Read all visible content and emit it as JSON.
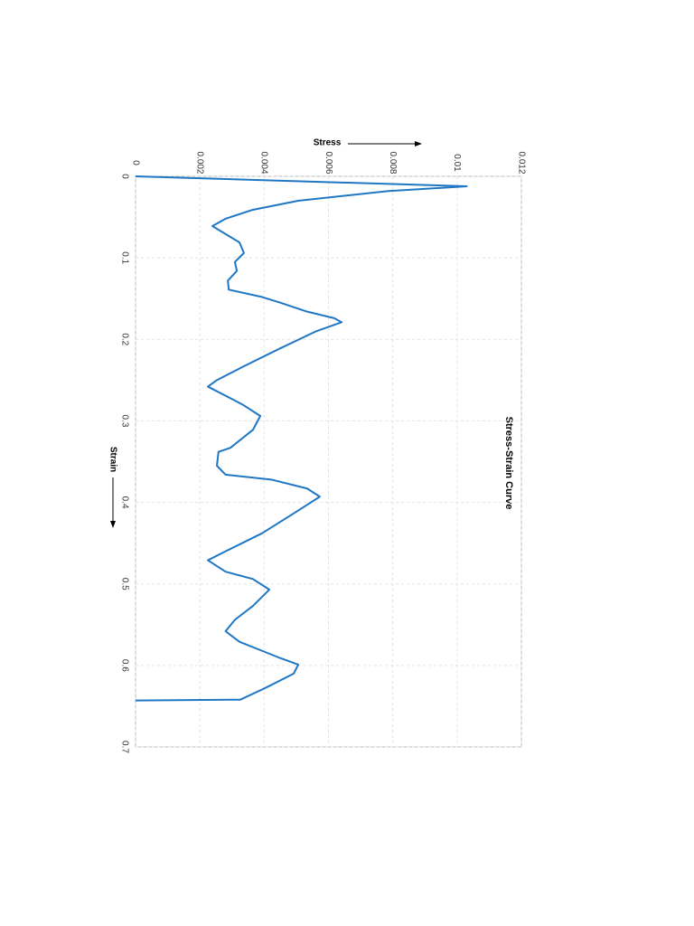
{
  "chart_data": {
    "type": "line",
    "title": "Stress-Strain Curve",
    "x_label": "Strain",
    "y_label": "Stress",
    "x": [
      0,
      0.0122,
      0.018,
      0.03,
      0.041,
      0.052,
      0.061,
      0.081,
      0.094,
      0.105,
      0.116,
      0.128,
      0.139,
      0.148,
      0.155,
      0.166,
      0.174,
      0.179,
      0.19,
      0.211,
      0.233,
      0.25,
      0.258,
      0.274,
      0.281,
      0.294,
      0.311,
      0.333,
      0.338,
      0.355,
      0.366,
      0.372,
      0.383,
      0.393,
      0.41,
      0.438,
      0.46,
      0.471,
      0.485,
      0.494,
      0.507,
      0.527,
      0.544,
      0.558,
      0.571,
      0.582,
      0.591,
      0.599,
      0.61,
      0.627,
      0.642,
      0.643
    ],
    "series": [
      {
        "name": "Stress",
        "color": "#1f77c4",
        "values": [
          0,
          0.0103,
          0.00787,
          0.00506,
          0.00365,
          0.0028,
          0.00239,
          0.00323,
          0.00337,
          0.00309,
          0.00315,
          0.00287,
          0.0029,
          0.00393,
          0.0045,
          0.00534,
          0.00618,
          0.00641,
          0.00562,
          0.0045,
          0.00337,
          0.00253,
          0.00225,
          0.00304,
          0.00337,
          0.00388,
          0.00365,
          0.00295,
          0.00258,
          0.00253,
          0.0028,
          0.00422,
          0.00534,
          0.00573,
          0.00506,
          0.00393,
          0.0028,
          0.00225,
          0.0028,
          0.00365,
          0.00416,
          0.00365,
          0.00309,
          0.0028,
          0.00323,
          0.00393,
          0.0045,
          0.00506,
          0.00492,
          0.00407,
          0.00326,
          0
        ]
      }
    ],
    "xlim": [
      0,
      0.7
    ],
    "xticks": [
      0,
      0.1,
      0.2,
      0.3,
      0.4,
      0.5,
      0.6,
      0.7
    ],
    "ylim": [
      0,
      0.012
    ],
    "yticks": [
      0,
      0.002,
      0.004,
      0.006,
      0.008,
      0.01,
      0.012
    ],
    "grid": true
  }
}
